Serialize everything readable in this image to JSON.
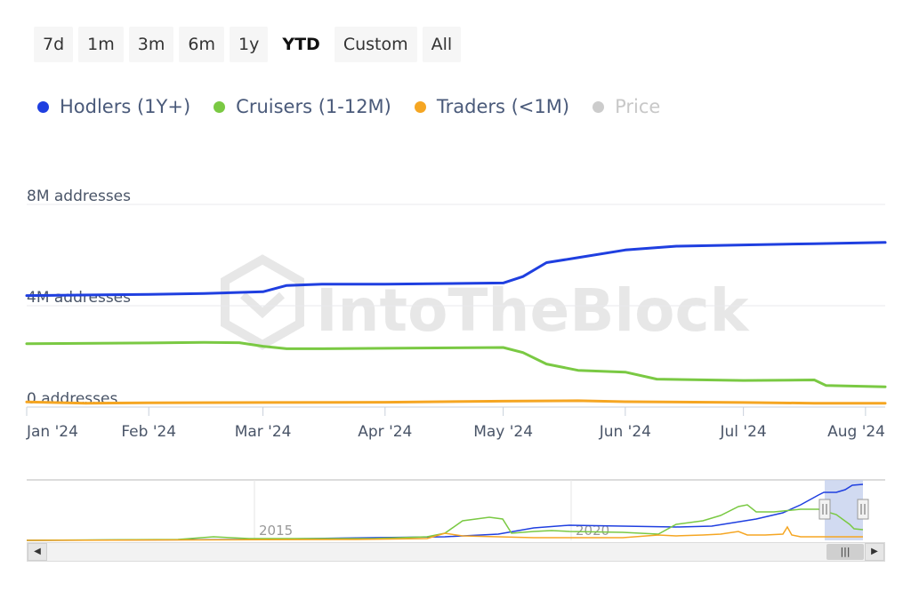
{
  "range_selector": {
    "buttons": [
      "7d",
      "1m",
      "3m",
      "6m",
      "1y",
      "YTD",
      "Custom",
      "All"
    ],
    "active": "YTD"
  },
  "legend": [
    {
      "label": "Hodlers (1Y+)",
      "color": "#1f3fe0",
      "enabled": true
    },
    {
      "label": "Cruisers (1-12M)",
      "color": "#7ac943",
      "enabled": true
    },
    {
      "label": "Traders (<1M)",
      "color": "#f5a623",
      "enabled": true
    },
    {
      "label": "Price",
      "color": "#cccccc",
      "enabled": false
    }
  ],
  "watermark": "IntoTheBlock",
  "chart_data": {
    "type": "line",
    "y_tick_labels": [
      "0 addresses",
      "4M addresses",
      "8M addresses"
    ],
    "y_ticks": [
      0,
      4000000,
      8000000
    ],
    "ylim": [
      0,
      8000000
    ],
    "x_tick_labels": [
      "Jan '24",
      "Feb '24",
      "Mar '24",
      "Apr '24",
      "May '24",
      "Jun '24",
      "Jul '24",
      "Aug '24"
    ],
    "x_tick_days": [
      0,
      31,
      60,
      91,
      121,
      152,
      182,
      213
    ],
    "x_range_days": [
      0,
      218
    ],
    "series": [
      {
        "name": "Hodlers (1Y+)",
        "color": "#1f3fe0",
        "x": [
          0,
          31,
          45,
          60,
          66,
          75,
          91,
          121,
          126,
          132,
          140,
          152,
          165,
          182,
          200,
          218
        ],
        "y": [
          4400000,
          4450000,
          4480000,
          4550000,
          4800000,
          4850000,
          4850000,
          4900000,
          5150000,
          5700000,
          5900000,
          6200000,
          6350000,
          6400000,
          6450000,
          6500000
        ]
      },
      {
        "name": "Cruisers (1-12M)",
        "color": "#7ac943",
        "x": [
          0,
          31,
          45,
          54,
          60,
          66,
          75,
          91,
          121,
          126,
          132,
          140,
          152,
          160,
          182,
          200,
          203,
          218
        ],
        "y": [
          2500000,
          2530000,
          2550000,
          2540000,
          2400000,
          2300000,
          2300000,
          2320000,
          2350000,
          2150000,
          1700000,
          1450000,
          1380000,
          1100000,
          1050000,
          1070000,
          850000,
          800000
        ]
      },
      {
        "name": "Traders (<1M)",
        "color": "#f5a623",
        "x": [
          0,
          15,
          31,
          60,
          91,
          121,
          140,
          152,
          182,
          200,
          218
        ],
        "y": [
          200000,
          150000,
          170000,
          180000,
          190000,
          230000,
          250000,
          210000,
          180000,
          150000,
          150000
        ]
      }
    ]
  },
  "navigator": {
    "x_tick_labels": [
      "2015",
      "2020"
    ]
  }
}
